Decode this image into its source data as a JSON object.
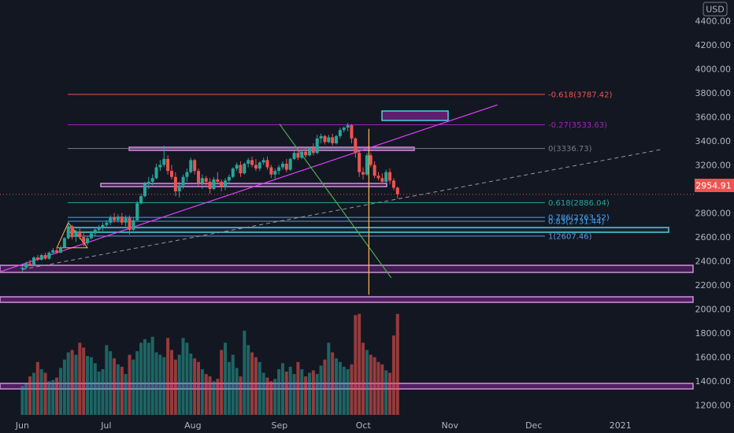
{
  "currency_label": "USD",
  "colors": {
    "background": "#131722",
    "up": "#26a69a",
    "down": "#ef5350",
    "vol_up": "#26a69a",
    "vol_down": "#ef5350",
    "purple": "#9c27b0",
    "magenta": "#e040fb",
    "orange": "#ffb74d",
    "green_line": "#4caf50",
    "cyan": "#4dd0e1",
    "price_tag": "#ef5350",
    "grid_text": "#b2b5be"
  },
  "price_tag": "2954.91",
  "chart_data": {
    "type": "candlestick",
    "y_axis_labels": [
      "4400.00",
      "4200.00",
      "4000.00",
      "3800.00",
      "3600.00",
      "3400.00",
      "3200.00",
      "3000.00",
      "2800.00",
      "2600.00",
      "2400.00",
      "2200.00",
      "2000.00",
      "1800.00",
      "1600.00",
      "1400.00",
      "1200.00"
    ],
    "y_axis_values": [
      4400,
      4200,
      4000,
      3800,
      3600,
      3400,
      3200,
      3000,
      2800,
      2600,
      2400,
      2200,
      2000,
      1800,
      1600,
      1400,
      1200
    ],
    "ylim": [
      1100,
      4520
    ],
    "x_axis_labels": [
      "Jun",
      "Jul",
      "Aug",
      "Sep",
      "Oct",
      "Nov",
      "Dec",
      "2021"
    ],
    "x_axis_days": [
      0,
      30,
      61,
      92,
      122,
      153,
      183,
      214
    ],
    "xlim": [
      -8,
      240
    ],
    "current_price": 2954.91,
    "fib_levels": [
      {
        "label": "-0.618(3787.42)",
        "value": 3787.42,
        "color": "#ef5350"
      },
      {
        "label": "-0.27(3533.63)",
        "value": 3533.63,
        "color": "#9c27b0"
      },
      {
        "label": "0(3336.73)",
        "value": 3336.73,
        "color": "#787b86"
      },
      {
        "label": "0.618(2886.04)",
        "value": 2886.04,
        "color": "#26a69a"
      },
      {
        "label": "0.786(2763.52)",
        "value": 2763.52,
        "color": "#42a5f5"
      },
      {
        "label": "0.83(2731.44)",
        "value": 2731.44,
        "color": "#42a5f5"
      },
      {
        "label": "1(2607.46)",
        "value": 2607.46,
        "color": "#5d9cec"
      }
    ],
    "candles": [
      {
        "o": 2335,
        "h": 2360,
        "l": 2310,
        "c": 2345
      },
      {
        "o": 2345,
        "h": 2395,
        "l": 2335,
        "c": 2380
      },
      {
        "o": 2380,
        "h": 2410,
        "l": 2360,
        "c": 2370
      },
      {
        "o": 2370,
        "h": 2440,
        "l": 2365,
        "c": 2430
      },
      {
        "o": 2430,
        "h": 2450,
        "l": 2400,
        "c": 2410
      },
      {
        "o": 2410,
        "h": 2460,
        "l": 2405,
        "c": 2450
      },
      {
        "o": 2450,
        "h": 2470,
        "l": 2410,
        "c": 2420
      },
      {
        "o": 2420,
        "h": 2480,
        "l": 2410,
        "c": 2470
      },
      {
        "o": 2470,
        "h": 2510,
        "l": 2455,
        "c": 2490
      },
      {
        "o": 2490,
        "h": 2520,
        "l": 2460,
        "c": 2470
      },
      {
        "o": 2470,
        "h": 2530,
        "l": 2465,
        "c": 2515
      },
      {
        "o": 2515,
        "h": 2600,
        "l": 2510,
        "c": 2590
      },
      {
        "o": 2590,
        "h": 2720,
        "l": 2580,
        "c": 2690
      },
      {
        "o": 2690,
        "h": 2700,
        "l": 2580,
        "c": 2600
      },
      {
        "o": 2600,
        "h": 2660,
        "l": 2560,
        "c": 2640
      },
      {
        "o": 2640,
        "h": 2670,
        "l": 2580,
        "c": 2600
      },
      {
        "o": 2600,
        "h": 2640,
        "l": 2520,
        "c": 2550
      },
      {
        "o": 2550,
        "h": 2610,
        "l": 2530,
        "c": 2590
      },
      {
        "o": 2590,
        "h": 2650,
        "l": 2580,
        "c": 2630
      },
      {
        "o": 2630,
        "h": 2680,
        "l": 2610,
        "c": 2660
      },
      {
        "o": 2660,
        "h": 2700,
        "l": 2640,
        "c": 2680
      },
      {
        "o": 2680,
        "h": 2720,
        "l": 2650,
        "c": 2700
      },
      {
        "o": 2700,
        "h": 2740,
        "l": 2680,
        "c": 2720
      },
      {
        "o": 2720,
        "h": 2780,
        "l": 2700,
        "c": 2760
      },
      {
        "o": 2760,
        "h": 2800,
        "l": 2720,
        "c": 2740
      },
      {
        "o": 2740,
        "h": 2790,
        "l": 2720,
        "c": 2770
      },
      {
        "o": 2770,
        "h": 2800,
        "l": 2700,
        "c": 2720
      },
      {
        "o": 2720,
        "h": 2780,
        "l": 2690,
        "c": 2760
      },
      {
        "o": 2760,
        "h": 2780,
        "l": 2620,
        "c": 2660
      },
      {
        "o": 2660,
        "h": 2760,
        "l": 2650,
        "c": 2740
      },
      {
        "o": 2740,
        "h": 2900,
        "l": 2730,
        "c": 2880
      },
      {
        "o": 2880,
        "h": 2960,
        "l": 2870,
        "c": 2940
      },
      {
        "o": 2940,
        "h": 3060,
        "l": 2930,
        "c": 3040
      },
      {
        "o": 3040,
        "h": 3100,
        "l": 3000,
        "c": 3060
      },
      {
        "o": 3060,
        "h": 3120,
        "l": 3030,
        "c": 3090
      },
      {
        "o": 3090,
        "h": 3210,
        "l": 3080,
        "c": 3180
      },
      {
        "o": 3180,
        "h": 3240,
        "l": 3150,
        "c": 3200
      },
      {
        "o": 3200,
        "h": 3360,
        "l": 3180,
        "c": 3250
      },
      {
        "o": 3250,
        "h": 3280,
        "l": 3120,
        "c": 3150
      },
      {
        "o": 3150,
        "h": 3200,
        "l": 3080,
        "c": 3100
      },
      {
        "o": 3100,
        "h": 3140,
        "l": 2940,
        "c": 2980
      },
      {
        "o": 2980,
        "h": 3060,
        "l": 2930,
        "c": 3030
      },
      {
        "o": 3030,
        "h": 3120,
        "l": 3000,
        "c": 3100
      },
      {
        "o": 3100,
        "h": 3170,
        "l": 3060,
        "c": 3140
      },
      {
        "o": 3140,
        "h": 3260,
        "l": 3130,
        "c": 3240
      },
      {
        "o": 3240,
        "h": 3250,
        "l": 3120,
        "c": 3150
      },
      {
        "o": 3150,
        "h": 3170,
        "l": 3020,
        "c": 3050
      },
      {
        "o": 3050,
        "h": 3120,
        "l": 3000,
        "c": 3090
      },
      {
        "o": 3090,
        "h": 3110,
        "l": 3030,
        "c": 3060
      },
      {
        "o": 3060,
        "h": 3090,
        "l": 2960,
        "c": 3000
      },
      {
        "o": 3000,
        "h": 3100,
        "l": 2990,
        "c": 3080
      },
      {
        "o": 3080,
        "h": 3140,
        "l": 3040,
        "c": 3060
      },
      {
        "o": 3060,
        "h": 3080,
        "l": 2980,
        "c": 3020
      },
      {
        "o": 3020,
        "h": 3090,
        "l": 2990,
        "c": 3070
      },
      {
        "o": 3070,
        "h": 3120,
        "l": 3040,
        "c": 3100
      },
      {
        "o": 3100,
        "h": 3180,
        "l": 3090,
        "c": 3170
      },
      {
        "o": 3170,
        "h": 3220,
        "l": 3150,
        "c": 3200
      },
      {
        "o": 3200,
        "h": 3230,
        "l": 3100,
        "c": 3130
      },
      {
        "o": 3130,
        "h": 3220,
        "l": 3120,
        "c": 3210
      },
      {
        "o": 3210,
        "h": 3260,
        "l": 3180,
        "c": 3240
      },
      {
        "o": 3240,
        "h": 3270,
        "l": 3180,
        "c": 3200
      },
      {
        "o": 3200,
        "h": 3250,
        "l": 3150,
        "c": 3170
      },
      {
        "o": 3170,
        "h": 3230,
        "l": 3150,
        "c": 3220
      },
      {
        "o": 3220,
        "h": 3260,
        "l": 3200,
        "c": 3240
      },
      {
        "o": 3240,
        "h": 3270,
        "l": 3160,
        "c": 3180
      },
      {
        "o": 3180,
        "h": 3200,
        "l": 3090,
        "c": 3120
      },
      {
        "o": 3120,
        "h": 3170,
        "l": 3080,
        "c": 3150
      },
      {
        "o": 3150,
        "h": 3200,
        "l": 3120,
        "c": 3180
      },
      {
        "o": 3180,
        "h": 3230,
        "l": 3160,
        "c": 3210
      },
      {
        "o": 3210,
        "h": 3250,
        "l": 3140,
        "c": 3160
      },
      {
        "o": 3160,
        "h": 3260,
        "l": 3150,
        "c": 3250
      },
      {
        "o": 3250,
        "h": 3320,
        "l": 3240,
        "c": 3300
      },
      {
        "o": 3300,
        "h": 3340,
        "l": 3240,
        "c": 3260
      },
      {
        "o": 3260,
        "h": 3320,
        "l": 3250,
        "c": 3310
      },
      {
        "o": 3310,
        "h": 3340,
        "l": 3260,
        "c": 3280
      },
      {
        "o": 3280,
        "h": 3350,
        "l": 3270,
        "c": 3340
      },
      {
        "o": 3340,
        "h": 3380,
        "l": 3280,
        "c": 3300
      },
      {
        "o": 3300,
        "h": 3450,
        "l": 3290,
        "c": 3420
      },
      {
        "o": 3420,
        "h": 3460,
        "l": 3380,
        "c": 3440
      },
      {
        "o": 3440,
        "h": 3450,
        "l": 3370,
        "c": 3390
      },
      {
        "o": 3390,
        "h": 3450,
        "l": 3380,
        "c": 3430
      },
      {
        "o": 3430,
        "h": 3460,
        "l": 3360,
        "c": 3380
      },
      {
        "o": 3380,
        "h": 3450,
        "l": 3370,
        "c": 3440
      },
      {
        "o": 3440,
        "h": 3510,
        "l": 3420,
        "c": 3490
      },
      {
        "o": 3490,
        "h": 3520,
        "l": 3470,
        "c": 3510
      },
      {
        "o": 3510,
        "h": 3550,
        "l": 3480,
        "c": 3530
      },
      {
        "o": 3530,
        "h": 3540,
        "l": 3380,
        "c": 3420
      },
      {
        "o": 3420,
        "h": 3430,
        "l": 3260,
        "c": 3300
      },
      {
        "o": 3300,
        "h": 3320,
        "l": 3100,
        "c": 3140
      },
      {
        "o": 3140,
        "h": 3180,
        "l": 3080,
        "c": 3120
      },
      {
        "o": 3120,
        "h": 3300,
        "l": 3110,
        "c": 3280
      },
      {
        "o": 3280,
        "h": 3300,
        "l": 3180,
        "c": 3200
      },
      {
        "o": 3200,
        "h": 3230,
        "l": 3090,
        "c": 3110
      },
      {
        "o": 3110,
        "h": 3140,
        "l": 3070,
        "c": 3090
      },
      {
        "o": 3090,
        "h": 3130,
        "l": 3040,
        "c": 3060
      },
      {
        "o": 3060,
        "h": 3160,
        "l": 3050,
        "c": 3140
      },
      {
        "o": 3140,
        "h": 3170,
        "l": 3040,
        "c": 3070
      },
      {
        "o": 3070,
        "h": 3090,
        "l": 2990,
        "c": 3010
      },
      {
        "o": 3010,
        "h": 3020,
        "l": 2920,
        "c": 2955
      }
    ],
    "volumes": [
      1360,
      1380,
      1440,
      1470,
      1560,
      1500,
      1470,
      1400,
      1410,
      1430,
      1510,
      1580,
      1640,
      1660,
      1620,
      1720,
      1680,
      1610,
      1600,
      1550,
      1480,
      1500,
      1700,
      1650,
      1590,
      1540,
      1520,
      1460,
      1620,
      1580,
      1650,
      1720,
      1750,
      1720,
      1770,
      1640,
      1620,
      1600,
      1760,
      1660,
      1580,
      1620,
      1760,
      1720,
      1630,
      1590,
      1560,
      1500,
      1460,
      1440,
      1400,
      1420,
      1660,
      1720,
      1560,
      1620,
      1510,
      1440,
      1820,
      1700,
      1640,
      1600,
      1560,
      1470,
      1430,
      1400,
      1420,
      1500,
      1550,
      1480,
      1520,
      1460,
      1560,
      1500,
      1440,
      1470,
      1490,
      1460,
      1530,
      1580,
      1720,
      1640,
      1590,
      1560,
      1520,
      1500,
      1540,
      1950,
      1960,
      1720,
      1660,
      1620,
      1600,
      1560,
      1540,
      1490,
      1470,
      1780,
      1960
    ],
    "trendline_ascending": {
      "x1": -8,
      "y1": 2310,
      "x2": 170,
      "y2": 3700
    },
    "trendline_dashed": {
      "x1": 0,
      "y1": 2330,
      "x2": 229,
      "y2": 3330
    },
    "trendline_descending": {
      "x1": 92,
      "y1": 3540,
      "x2": 132,
      "y2": 2260
    },
    "vertical_marker_day": 124,
    "vertical_marker_range": [
      2120,
      3500
    ]
  }
}
